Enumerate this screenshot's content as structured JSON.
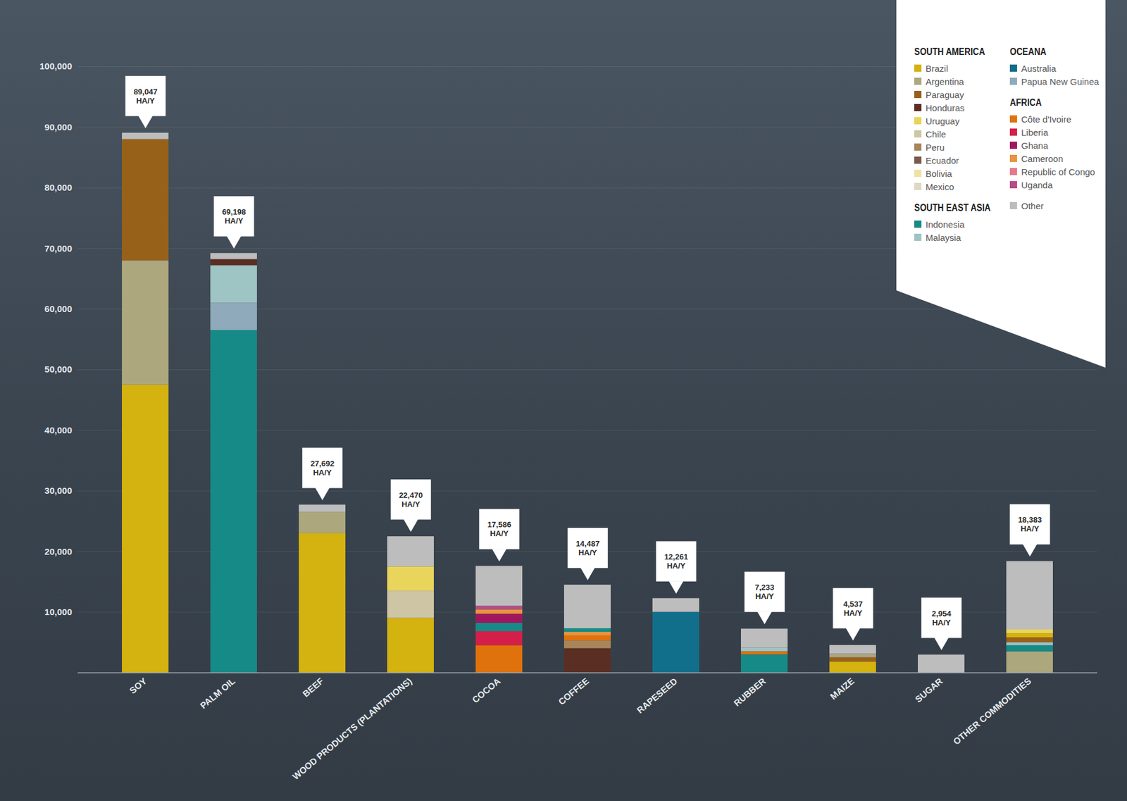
{
  "chart_data": {
    "type": "bar",
    "stacked": true,
    "grid": true,
    "data_labels": true,
    "legend": "top-right",
    "categories": [
      "SOY",
      "PALM OIL",
      "BEEF",
      "WOOD PRODUCTS (PLANTATIONS)",
      "COCOA",
      "COFFEE",
      "RAPESEED",
      "RUBBER",
      "MAIZE",
      "SUGAR",
      "OTHER COMMODITIES"
    ],
    "totals": [
      89047,
      69198,
      27692,
      22470,
      17586,
      14487,
      12261,
      7233,
      4537,
      2954,
      18383
    ],
    "total_labels": [
      "89,047\nHA/Y",
      "69,198\nHA/Y",
      "27,692\nHA/Y",
      "22,470\nHA/Y",
      "17,586\nHA/Y",
      "14,487\nHA/Y",
      "12,261\nHA/Y",
      "7,233\nHA/Y",
      "4,537\nHA/Y",
      "2,954\nHA/Y",
      "18,383\nHA/Y"
    ],
    "stacks": [
      [
        {
          "name": "Brazil",
          "value": 47500
        },
        {
          "name": "Argentina",
          "value": 20500
        },
        {
          "name": "Paraguay",
          "value": 20000
        },
        {
          "name": "Other",
          "value": 1047
        }
      ],
      [
        {
          "name": "Indonesia",
          "value": 56500
        },
        {
          "name": "Papua New Guinea",
          "value": 4500
        },
        {
          "name": "Malaysia",
          "value": 6200
        },
        {
          "name": "Honduras",
          "value": 1000
        },
        {
          "name": "Other",
          "value": 998
        }
      ],
      [
        {
          "name": "Brazil",
          "value": 23000
        },
        {
          "name": "Argentina",
          "value": 3500
        },
        {
          "name": "Other",
          "value": 1192
        }
      ],
      [
        {
          "name": "Brazil",
          "value": 9000
        },
        {
          "name": "Chile",
          "value": 4500
        },
        {
          "name": "Uruguay",
          "value": 4000
        },
        {
          "name": "Other",
          "value": 4970
        }
      ],
      [
        {
          "name": "Côte d'Ivoire",
          "value": 4500
        },
        {
          "name": "Liberia",
          "value": 2300
        },
        {
          "name": "Indonesia",
          "value": 1400
        },
        {
          "name": "Ghana",
          "value": 1500
        },
        {
          "name": "Cameroon",
          "value": 700
        },
        {
          "name": "Uganda",
          "value": 600
        },
        {
          "name": "Other",
          "value": 6586
        }
      ],
      [
        {
          "name": "Honduras",
          "value": 4000
        },
        {
          "name": "Peru",
          "value": 1300
        },
        {
          "name": "Côte d'Ivoire",
          "value": 800
        },
        {
          "name": "Cameroon",
          "value": 600
        },
        {
          "name": "Indonesia",
          "value": 600
        },
        {
          "name": "Other",
          "value": 7187
        }
      ],
      [
        {
          "name": "Australia",
          "value": 10000
        },
        {
          "name": "Other",
          "value": 2261
        }
      ],
      [
        {
          "name": "Indonesia",
          "value": 3000
        },
        {
          "name": "Côte d'Ivoire",
          "value": 500
        },
        {
          "name": "Malaysia",
          "value": 600
        },
        {
          "name": "Other",
          "value": 3133
        }
      ],
      [
        {
          "name": "Brazil",
          "value": 1800
        },
        {
          "name": "Paraguay",
          "value": 700
        },
        {
          "name": "Argentina",
          "value": 600
        },
        {
          "name": "Other",
          "value": 1437
        }
      ],
      [
        {
          "name": "Other",
          "value": 2954
        }
      ],
      [
        {
          "name": "Argentina",
          "value": 3500
        },
        {
          "name": "Indonesia",
          "value": 1000
        },
        {
          "name": "Malaysia",
          "value": 500
        },
        {
          "name": "Paraguay",
          "value": 800
        },
        {
          "name": "Brazil",
          "value": 700
        },
        {
          "name": "Uruguay",
          "value": 600
        },
        {
          "name": "Other",
          "value": 11283
        }
      ]
    ],
    "legend_groups": [
      {
        "title": "SOUTH AMERICA",
        "items": [
          {
            "name": "Brazil",
            "color": "#d4b20f"
          },
          {
            "name": "Argentina",
            "color": "#aca77d"
          },
          {
            "name": "Paraguay",
            "color": "#98611a"
          },
          {
            "name": "Honduras",
            "color": "#5a2e22"
          },
          {
            "name": "Uruguay",
            "color": "#e9d45c"
          },
          {
            "name": "Chile",
            "color": "#cdc5a3"
          },
          {
            "name": "Peru",
            "color": "#a8865a"
          },
          {
            "name": "Ecuador",
            "color": "#7b5a4b"
          },
          {
            "name": "Bolivia",
            "color": "#efe3a2"
          },
          {
            "name": "Mexico",
            "color": "#ddd8c2"
          }
        ]
      },
      {
        "title": "SOUTH EAST ASIA",
        "items": [
          {
            "name": "Indonesia",
            "color": "#168a86"
          },
          {
            "name": "Malaysia",
            "color": "#9fc4c4"
          }
        ]
      },
      {
        "title": "OCEANA",
        "items": [
          {
            "name": "Australia",
            "color": "#126f8c"
          },
          {
            "name": "Papua New Guinea",
            "color": "#8eaabb"
          }
        ]
      },
      {
        "title": "AFRICA",
        "items": [
          {
            "name": "Côte d'Ivoire",
            "color": "#e0720d"
          },
          {
            "name": "Liberia",
            "color": "#d41f4a"
          },
          {
            "name": "Ghana",
            "color": "#a0165e"
          },
          {
            "name": "Cameroon",
            "color": "#e8943f"
          },
          {
            "name": "Republic of Congo",
            "color": "#e27a8a"
          },
          {
            "name": "Uganda",
            "color": "#b64d86"
          }
        ]
      },
      {
        "items": [
          {
            "name": "Other",
            "color": "#bdbdbd"
          }
        ]
      }
    ],
    "ylim": [
      0,
      100000
    ],
    "yticks": [
      {
        "value": 10000,
        "label": "10,000"
      },
      {
        "value": 20000,
        "label": "20,000"
      },
      {
        "value": 30000,
        "label": "30,000"
      },
      {
        "value": 40000,
        "label": "40,000"
      },
      {
        "value": 50000,
        "label": "50,000"
      },
      {
        "value": 60000,
        "label": "60,000"
      },
      {
        "value": 70000,
        "label": "70,000"
      },
      {
        "value": 80000,
        "label": "80,000"
      },
      {
        "value": 90000,
        "label": "90,000"
      },
      {
        "value": 100000,
        "label": "100,000"
      }
    ]
  }
}
